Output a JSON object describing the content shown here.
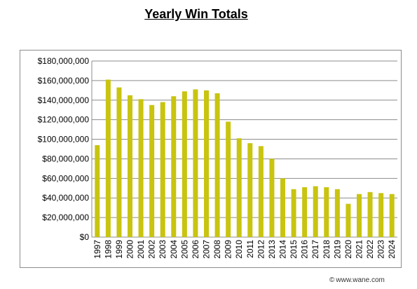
{
  "credit": {
    "symbol": "©",
    "text": "www.wane.com"
  },
  "chart_data": {
    "type": "bar",
    "title": "Yearly Win Totals",
    "xlabel": "",
    "ylabel": "",
    "ylim": [
      0,
      180000000
    ],
    "yticks": [
      0,
      20000000,
      40000000,
      60000000,
      80000000,
      100000000,
      120000000,
      140000000,
      160000000,
      180000000
    ],
    "ytick_labels": [
      "$0",
      "$20,000,000",
      "$40,000,000",
      "$60,000,000",
      "$80,000,000",
      "$100,000,000",
      "$120,000,000",
      "$140,000,000",
      "$160,000,000",
      "$180,000,000"
    ],
    "grid": true,
    "legend": "none",
    "bar_color": "#c8c410",
    "categories": [
      "1997",
      "1998",
      "1999",
      "2000",
      "2001",
      "2002",
      "2003",
      "2004",
      "2005",
      "2006",
      "2007",
      "2008",
      "2009",
      "2010",
      "2011",
      "2012",
      "2013",
      "2014",
      "2015",
      "2016",
      "2017",
      "2018",
      "2019",
      "2020",
      "2021",
      "2022",
      "2023",
      "2024"
    ],
    "values": [
      94000000,
      161000000,
      153000000,
      145000000,
      141000000,
      135000000,
      138000000,
      144000000,
      149000000,
      151000000,
      150000000,
      147000000,
      118000000,
      101000000,
      96000000,
      93000000,
      80000000,
      60000000,
      49000000,
      51000000,
      52000000,
      51000000,
      49000000,
      34000000,
      44000000,
      46000000,
      45000000,
      44000000
    ]
  }
}
